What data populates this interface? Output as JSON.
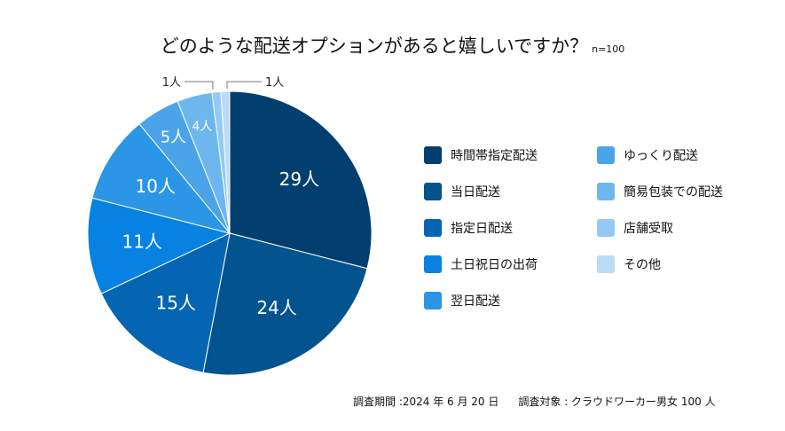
{
  "chart_data": {
    "type": "pie",
    "title": "どのような配送オプションがあると嬉しいですか？",
    "sample_size_label": "n=100",
    "unit": "人",
    "categories": [
      "時間帯指定配送",
      "当日配送",
      "指定日配送",
      "土日祝日の出荷",
      "翌日配送",
      "ゆっくり配送",
      "簡易包装での配送",
      "店舗受取",
      "その他"
    ],
    "values": [
      29,
      24,
      15,
      11,
      10,
      5,
      4,
      1,
      1
    ],
    "data_labels": [
      "29人",
      "24人",
      "15人",
      "11人",
      "10人",
      "5人",
      "4人",
      "1人",
      "1人"
    ],
    "colors": [
      "#023f6f",
      "#03538f",
      "#0565b3",
      "#0782e2",
      "#2b95e6",
      "#4ba4e9",
      "#6db6ee",
      "#93c9f3",
      "#badcf7"
    ],
    "legend_placement": "right",
    "start_angle": "12 o'clock",
    "direction": "clockwise"
  },
  "footer": {
    "survey_date": "調査期間 :2024 年 6 月 20 日",
    "survey_target": "調査対象 : クラウドワーカー男女 100 人"
  }
}
